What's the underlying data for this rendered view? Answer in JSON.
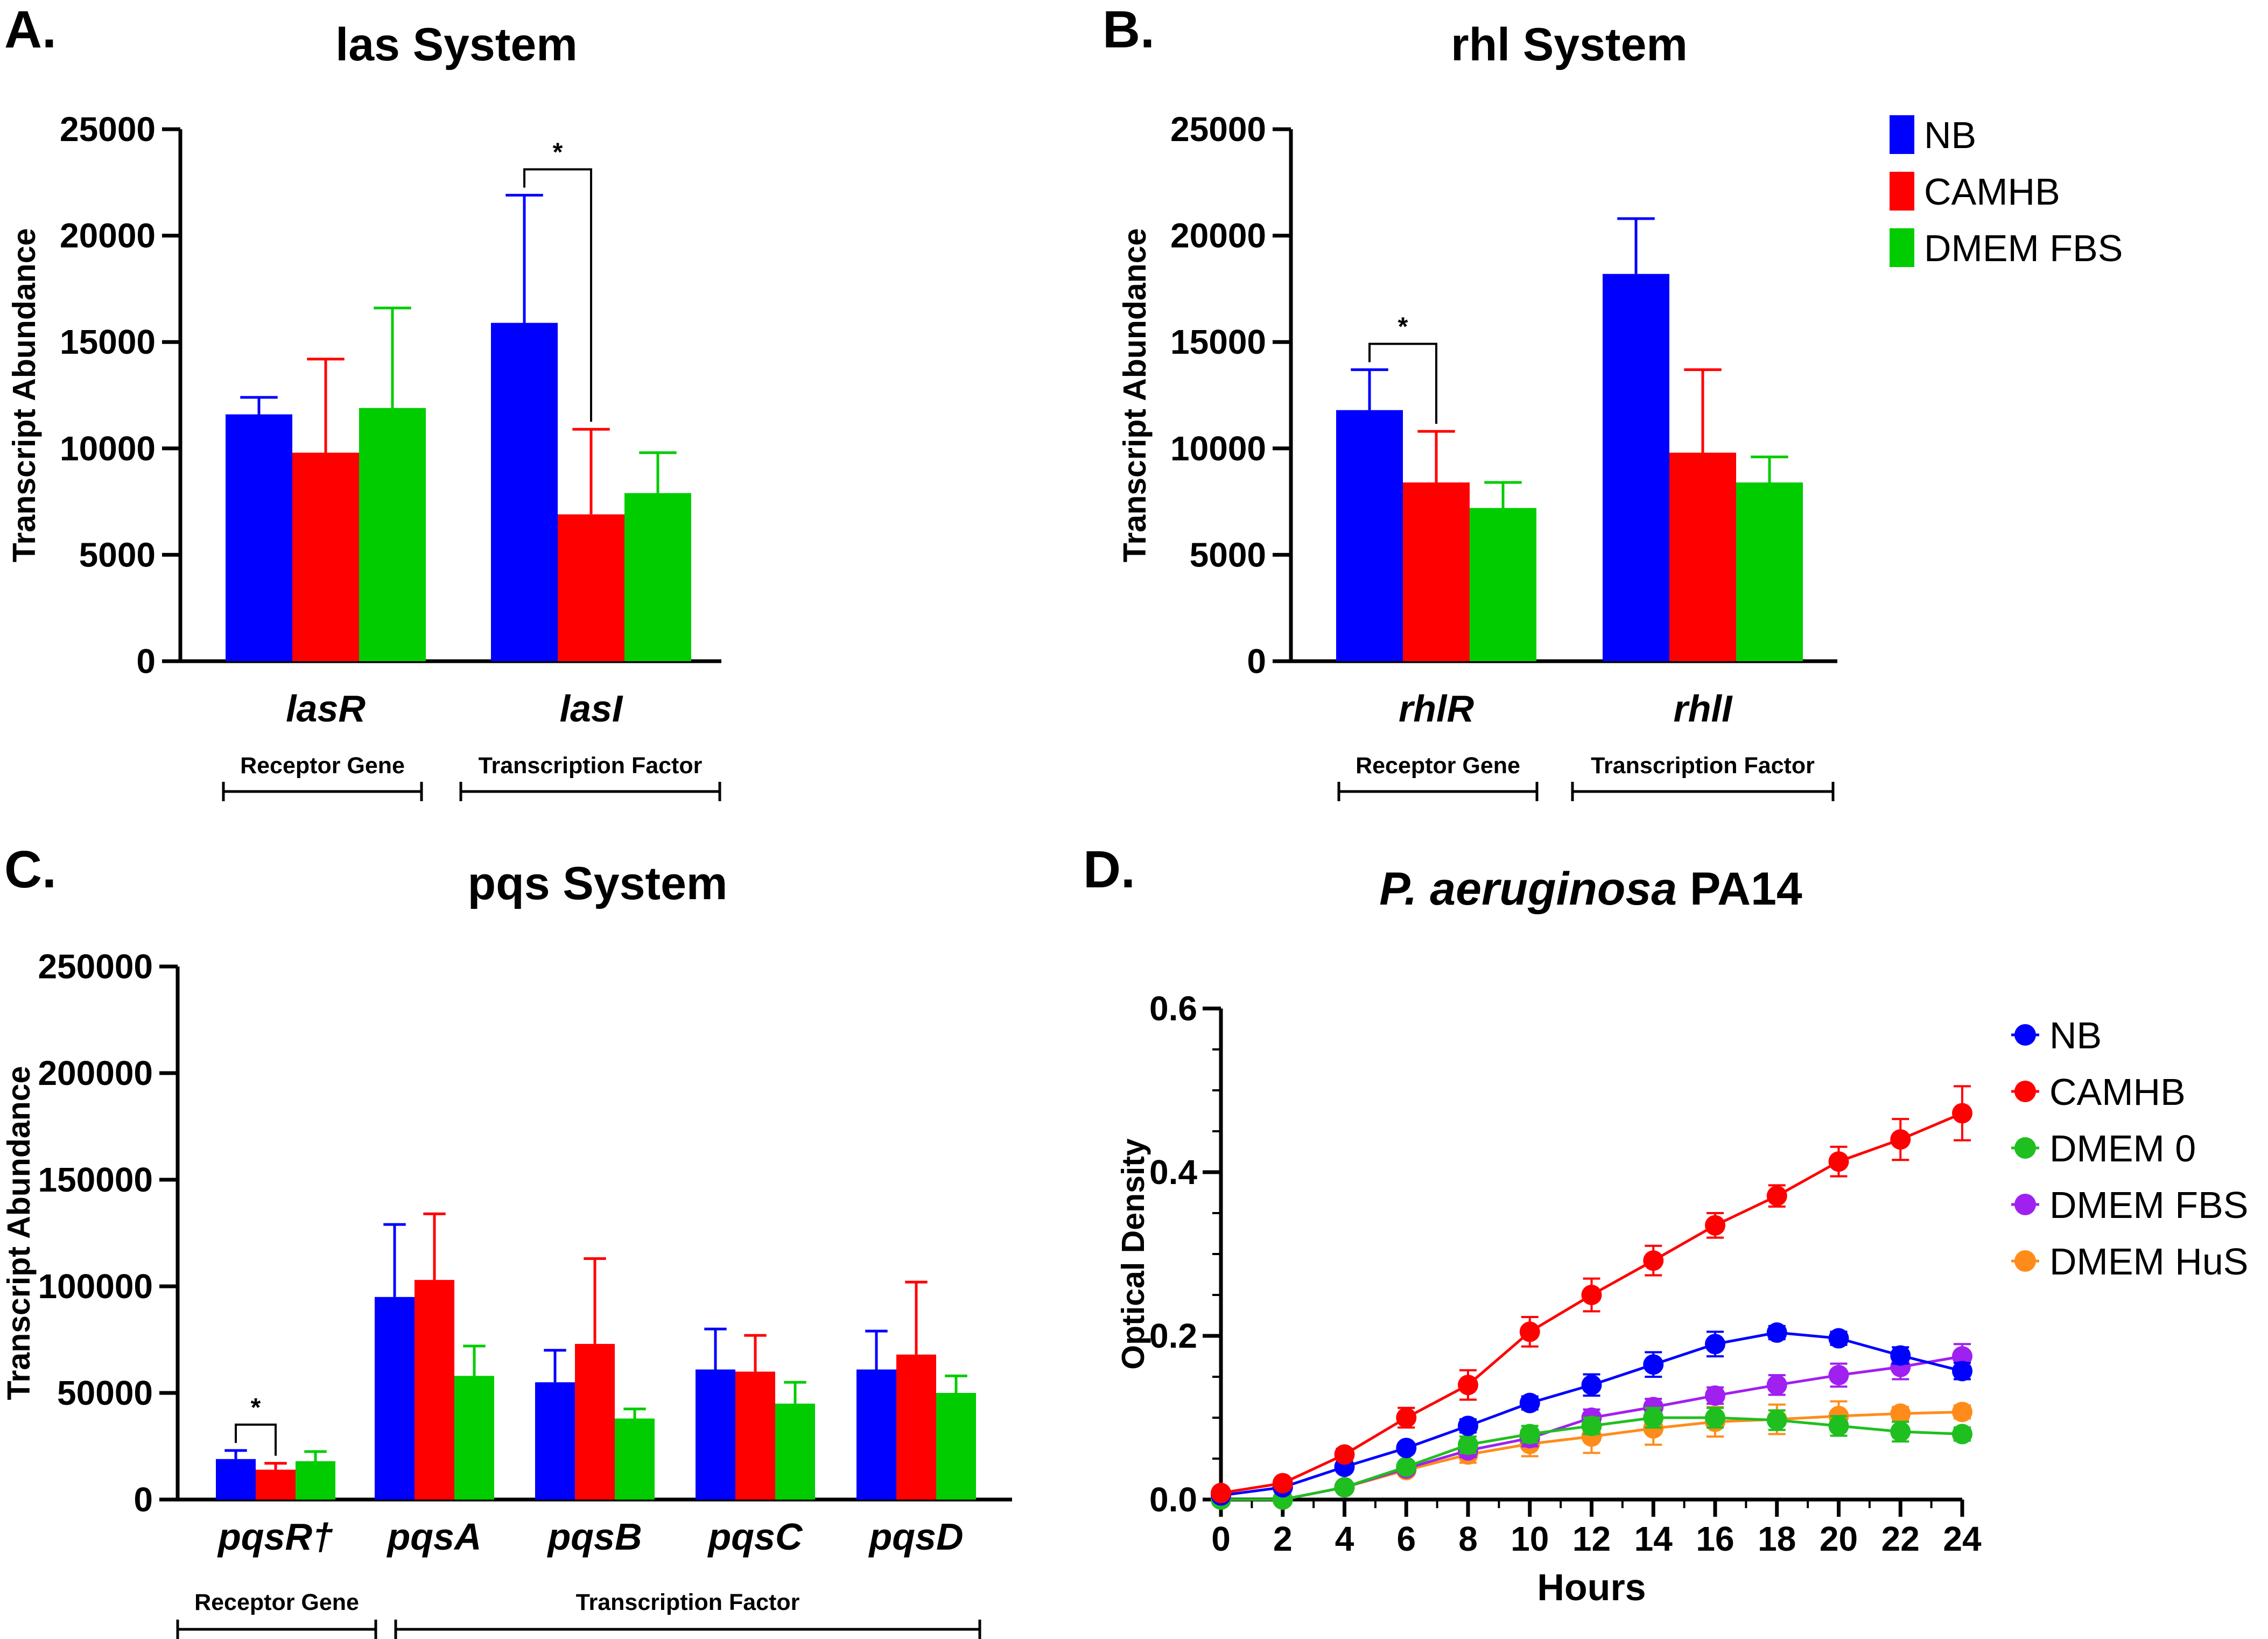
{
  "colors": {
    "NB": "#0000ff",
    "CAMHB": "#ff0000",
    "DMEM FBS": "#00cc00",
    "DMEM 0": "#1fbf1f",
    "DMEM FBS line": "#a020f0",
    "DMEM HuS": "#ff8c1a"
  },
  "chart_data": [
    {
      "id": "A",
      "letter": "A.",
      "type": "bar",
      "title": "las System",
      "ylabel": "Transcript Abundance",
      "ylim": [
        0,
        25000
      ],
      "yticks": [
        0,
        5000,
        10000,
        15000,
        20000,
        25000
      ],
      "ytick_labels": [
        "0",
        "5000",
        "10000",
        "15000",
        "20000",
        "25000"
      ],
      "categories": [
        "lasR",
        "lasI"
      ],
      "series": [
        {
          "name": "NB",
          "values": [
            11600,
            15900
          ],
          "errors": [
            800,
            6000
          ]
        },
        {
          "name": "CAMHB",
          "values": [
            9800,
            6900
          ],
          "errors": [
            4400,
            4000
          ]
        },
        {
          "name": "DMEM FBS",
          "values": [
            11900,
            7900
          ],
          "errors": [
            4700,
            1900
          ]
        }
      ],
      "significance": [
        {
          "label": "*",
          "category": 1,
          "from": 0,
          "to": 1
        }
      ],
      "groups": [
        {
          "label": "Receptor Gene",
          "from": 0,
          "to": 0
        },
        {
          "label": "Transcription Factor",
          "from": 1,
          "to": 1
        }
      ]
    },
    {
      "id": "B",
      "letter": "B.",
      "type": "bar",
      "title": "rhl System",
      "ylabel": "Transcript Abundance",
      "ylim": [
        0,
        25000
      ],
      "yticks": [
        0,
        5000,
        10000,
        15000,
        20000,
        25000
      ],
      "ytick_labels": [
        "0",
        "5000",
        "10000",
        "15000",
        "20000",
        "25000"
      ],
      "categories": [
        "rhlR",
        "rhlI"
      ],
      "series": [
        {
          "name": "NB",
          "values": [
            11800,
            18200
          ],
          "errors": [
            1900,
            2600
          ]
        },
        {
          "name": "CAMHB",
          "values": [
            8400,
            9800
          ],
          "errors": [
            2400,
            3900
          ]
        },
        {
          "name": "DMEM FBS",
          "values": [
            7200,
            8400
          ],
          "errors": [
            1200,
            1200
          ]
        }
      ],
      "significance": [
        {
          "label": "*",
          "category": 0,
          "from": 0,
          "to": 1
        }
      ],
      "groups": [
        {
          "label": "Receptor Gene",
          "from": 0,
          "to": 0
        },
        {
          "label": "Transcription Factor",
          "from": 1,
          "to": 1
        }
      ],
      "legend": {
        "placement": "top-right",
        "entries": [
          "NB",
          "CAMHB",
          "DMEM FBS"
        ]
      }
    },
    {
      "id": "C",
      "letter": "C.",
      "type": "bar",
      "title": "pqs System",
      "ylabel": "Transcript Abundance",
      "ylim": [
        0,
        250000
      ],
      "yticks": [
        0,
        50000,
        100000,
        150000,
        200000,
        250000
      ],
      "ytick_labels": [
        "0",
        "50000",
        "100000",
        "150000",
        "200000",
        "250000"
      ],
      "categories": [
        "pqsR†",
        "pqsA",
        "pqsB",
        "pqsC",
        "pqsD"
      ],
      "series": [
        {
          "name": "NB",
          "values": [
            19000,
            95000,
            55000,
            61000,
            61000
          ],
          "errors": [
            4000,
            34000,
            15000,
            19000,
            18000
          ]
        },
        {
          "name": "CAMHB",
          "values": [
            14000,
            103000,
            73000,
            60000,
            68000
          ],
          "errors": [
            3000,
            31000,
            40000,
            17000,
            34000
          ]
        },
        {
          "name": "DMEM FBS",
          "values": [
            18000,
            58000,
            38000,
            45000,
            50000
          ],
          "errors": [
            4500,
            14000,
            4500,
            10000,
            8000
          ]
        }
      ],
      "significance": [
        {
          "label": "*",
          "category": 0,
          "from": 0,
          "to": 1
        }
      ],
      "groups": [
        {
          "label": "Receptor Gene",
          "from": 0,
          "to": 0
        },
        {
          "label": "Transcription Factor",
          "from": 1,
          "to": 4
        }
      ]
    },
    {
      "id": "D",
      "letter": "D.",
      "type": "line",
      "title_italic": "P. aeruginosa",
      "title_rest": " PA14",
      "xlabel": "Hours",
      "ylabel": "Optical Density",
      "xlim": [
        0,
        24
      ],
      "ylim": [
        0,
        0.6
      ],
      "xticks": [
        0,
        2,
        4,
        6,
        8,
        10,
        12,
        14,
        16,
        18,
        20,
        22,
        24
      ],
      "xtick_labels": [
        "0",
        "2",
        "4",
        "6",
        "8",
        "10",
        "12",
        "14",
        "16",
        "18",
        "20",
        "22",
        "24"
      ],
      "yticks": [
        0,
        0.2,
        0.4,
        0.6
      ],
      "ytick_labels": [
        "0.0",
        "0.2",
        "0.4",
        "0.6"
      ],
      "x": [
        0,
        2,
        4,
        6,
        8,
        10,
        12,
        14,
        16,
        18,
        20,
        22,
        24
      ],
      "series": [
        {
          "name": "NB",
          "values": [
            0.005,
            0.015,
            0.04,
            0.063,
            0.09,
            0.118,
            0.14,
            0.165,
            0.19,
            0.204,
            0.197,
            0.176,
            0.157
          ],
          "errors": [
            0.004,
            0.004,
            0.006,
            0.006,
            0.008,
            0.008,
            0.013,
            0.015,
            0.015,
            0.008,
            0.008,
            0.01,
            0.01
          ]
        },
        {
          "name": "CAMHB",
          "values": [
            0.008,
            0.02,
            0.055,
            0.1,
            0.14,
            0.205,
            0.25,
            0.292,
            0.335,
            0.371,
            0.413,
            0.44,
            0.472
          ],
          "errors": [
            0.004,
            0.006,
            0.007,
            0.012,
            0.018,
            0.018,
            0.02,
            0.018,
            0.015,
            0.013,
            0.018,
            0.025,
            0.033
          ]
        },
        {
          "name": "DMEM 0",
          "values": [
            0.0,
            -0.005,
            0.015,
            0.04,
            0.067,
            0.08,
            0.09,
            0.1,
            0.1,
            0.097,
            0.09,
            0.083,
            0.08
          ],
          "errors": [
            0.003,
            0.003,
            0.005,
            0.006,
            0.01,
            0.01,
            0.01,
            0.012,
            0.012,
            0.012,
            0.012,
            0.012,
            0.008
          ]
        },
        {
          "name": "DMEM FBS",
          "values": [
            0.0,
            -0.005,
            0.015,
            0.038,
            0.06,
            0.075,
            0.1,
            0.113,
            0.127,
            0.14,
            0.152,
            0.162,
            0.175
          ],
          "errors": [
            0.003,
            0.003,
            0.005,
            0.006,
            0.008,
            0.01,
            0.01,
            0.01,
            0.01,
            0.012,
            0.014,
            0.015,
            0.015
          ]
        },
        {
          "name": "DMEM HuS",
          "values": [
            0.0,
            -0.005,
            0.015,
            0.036,
            0.055,
            0.068,
            0.077,
            0.087,
            0.095,
            0.098,
            0.102,
            0.105,
            0.107
          ],
          "errors": [
            0.003,
            0.003,
            0.005,
            0.006,
            0.01,
            0.015,
            0.02,
            0.02,
            0.018,
            0.018,
            0.018,
            0.008,
            0.008
          ]
        }
      ],
      "legend": {
        "placement": "right",
        "entries": [
          "NB",
          "CAMHB",
          "DMEM 0",
          "DMEM FBS",
          "DMEM HuS"
        ]
      }
    }
  ]
}
